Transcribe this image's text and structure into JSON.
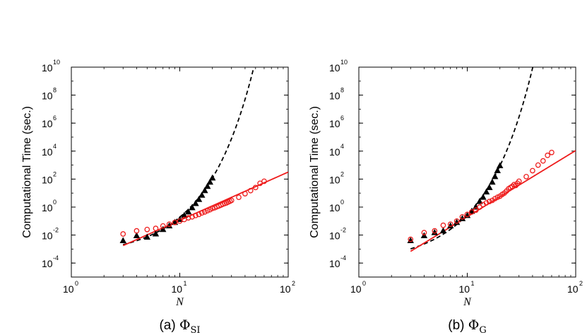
{
  "chart_data": [
    {
      "type": "scatter",
      "panel": "left",
      "caption": {
        "prefix": "(a)",
        "symbol": "Φ",
        "subscript": "SI"
      },
      "ylabel": "Computational Time (sec.)",
      "xlabel": "N",
      "xscale": "log",
      "yscale": "log",
      "xlim": [
        1,
        100
      ],
      "ylim": [
        1e-05,
        10000000000
      ],
      "x_ticks": [
        {
          "base": "10",
          "exp": "0",
          "value": 1
        },
        {
          "base": "10",
          "exp": "1",
          "value": 10
        },
        {
          "base": "10",
          "exp": "2",
          "value": 100
        }
      ],
      "y_ticks": [
        {
          "base": "10",
          "exp": "-4",
          "value": 0.0001
        },
        {
          "base": "10",
          "exp": "-2",
          "value": 0.01
        },
        {
          "base": "10",
          "exp": "0",
          "value": 1
        },
        {
          "base": "10",
          "exp": "2",
          "value": 100
        },
        {
          "base": "10",
          "exp": "4",
          "value": 10000
        },
        {
          "base": "10",
          "exp": "6",
          "value": 1000000
        },
        {
          "base": "10",
          "exp": "8",
          "value": 100000000
        },
        {
          "base": "10",
          "exp": "10",
          "value": 10000000000
        }
      ],
      "series": [
        {
          "name": "triangles",
          "marker": "triangle",
          "color": "#000000",
          "x": [
            3,
            4,
            5,
            6,
            7,
            8,
            9,
            10,
            11,
            12,
            13,
            14,
            15,
            16,
            17,
            18,
            19,
            20
          ],
          "y": [
            0.004,
            0.009,
            0.007,
            0.012,
            0.025,
            0.045,
            0.08,
            0.13,
            0.25,
            0.45,
            0.9,
            1.8,
            3.5,
            7,
            15,
            30,
            60,
            120
          ]
        },
        {
          "name": "circles",
          "marker": "circle",
          "color": "#ee1c1c",
          "x": [
            3,
            4,
            5,
            6,
            7,
            8,
            9,
            10,
            11,
            12,
            13,
            14,
            15,
            16,
            17,
            18,
            19,
            20,
            21,
            22,
            23,
            24,
            25,
            26,
            27,
            28,
            29,
            30,
            35,
            40,
            45,
            50,
            55,
            60
          ],
          "y": [
            0.012,
            0.02,
            0.025,
            0.03,
            0.045,
            0.06,
            0.08,
            0.1,
            0.13,
            0.17,
            0.2,
            0.25,
            0.3,
            0.38,
            0.45,
            0.55,
            0.65,
            0.8,
            0.9,
            1.05,
            1.2,
            1.4,
            1.6,
            1.8,
            2.0,
            2.3,
            2.6,
            3.0,
            5,
            9,
            15,
            25,
            50,
            70
          ]
        },
        {
          "name": "dashed fit",
          "style": "dashed",
          "color": "#000000",
          "model": {
            "kind": "exponential",
            "a": 0.000298,
            "b": 0.646
          }
        },
        {
          "name": "solid fit",
          "style": "solid",
          "color": "#ee1c1c",
          "model": {
            "kind": "power",
            "c": 4e-05,
            "p": 3.45
          }
        }
      ]
    },
    {
      "type": "scatter",
      "panel": "right",
      "caption": {
        "prefix": "(b)",
        "symbol": "Φ",
        "subscript": "G"
      },
      "ylabel": "Computational Time (sec.)",
      "xlabel": "N",
      "xscale": "log",
      "yscale": "log",
      "xlim": [
        1,
        100
      ],
      "ylim": [
        1e-05,
        10000000000
      ],
      "x_ticks": [
        {
          "base": "10",
          "exp": "0",
          "value": 1
        },
        {
          "base": "10",
          "exp": "1",
          "value": 10
        },
        {
          "base": "10",
          "exp": "2",
          "value": 100
        }
      ],
      "y_ticks": [
        {
          "base": "10",
          "exp": "-4",
          "value": 0.0001
        },
        {
          "base": "10",
          "exp": "-2",
          "value": 0.01
        },
        {
          "base": "10",
          "exp": "0",
          "value": 1
        },
        {
          "base": "10",
          "exp": "2",
          "value": 100
        },
        {
          "base": "10",
          "exp": "4",
          "value": 10000
        },
        {
          "base": "10",
          "exp": "6",
          "value": 1000000
        },
        {
          "base": "10",
          "exp": "8",
          "value": 100000000
        },
        {
          "base": "10",
          "exp": "10",
          "value": 10000000000
        }
      ],
      "series": [
        {
          "name": "triangles",
          "marker": "triangle",
          "color": "#000000",
          "x": [
            3,
            4,
            5,
            6,
            7,
            8,
            9,
            10,
            11,
            12,
            13,
            14,
            15,
            16,
            17,
            18,
            19,
            20
          ],
          "y": [
            0.004,
            0.009,
            0.015,
            0.02,
            0.045,
            0.08,
            0.15,
            0.25,
            0.5,
            1,
            2.5,
            5,
            12,
            25,
            60,
            150,
            400,
            900
          ]
        },
        {
          "name": "circles",
          "marker": "circle",
          "color": "#ee1c1c",
          "x": [
            3,
            4,
            5,
            6,
            7,
            8,
            9,
            10,
            11,
            12,
            13,
            14,
            15,
            16,
            17,
            18,
            19,
            20,
            21,
            22,
            23,
            24,
            25,
            26,
            27,
            28,
            29,
            30,
            35,
            40,
            45,
            50,
            55,
            60
          ],
          "y": [
            0.005,
            0.015,
            0.02,
            0.05,
            0.06,
            0.1,
            0.2,
            0.3,
            0.45,
            0.6,
            1,
            1.5,
            2,
            2.5,
            3,
            4,
            5,
            6,
            8,
            10,
            14,
            20,
            25,
            30,
            40,
            35,
            50,
            70,
            150,
            400,
            1000,
            2000,
            5000,
            8000
          ]
        },
        {
          "name": "dashed fit",
          "style": "dashed",
          "color": "#000000",
          "model": {
            "kind": "exponential",
            "a": 9.26e-05,
            "b": 0.804
          }
        },
        {
          "name": "solid fit",
          "style": "solid",
          "color": "#ee1c1c",
          "model": {
            "kind": "power",
            "c": 3.8e-06,
            "p": 4.73
          }
        }
      ]
    }
  ]
}
